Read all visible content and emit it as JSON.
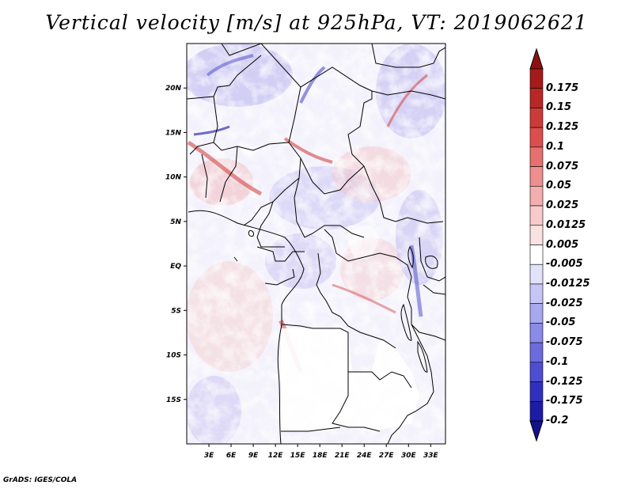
{
  "title": "Vertical velocity [m/s] at 925hPa, VT: 2019062621",
  "footer": "GrADS: IGES/COLA",
  "map": {
    "lon_range": [
      0,
      35
    ],
    "lat_range": [
      -20,
      25
    ],
    "lat_ticks": [
      {
        "value": 20,
        "label": "20N"
      },
      {
        "value": 15,
        "label": "15N"
      },
      {
        "value": 10,
        "label": "10N"
      },
      {
        "value": 5,
        "label": "5N"
      },
      {
        "value": 0,
        "label": "EQ"
      },
      {
        "value": -5,
        "label": "5S"
      },
      {
        "value": -10,
        "label": "10S"
      },
      {
        "value": -15,
        "label": "15S"
      }
    ],
    "lon_ticks": [
      {
        "value": 3,
        "label": "3E"
      },
      {
        "value": 6,
        "label": "6E"
      },
      {
        "value": 9,
        "label": "9E"
      },
      {
        "value": 12,
        "label": "12E"
      },
      {
        "value": 15,
        "label": "15E"
      },
      {
        "value": 18,
        "label": "18E"
      },
      {
        "value": 21,
        "label": "21E"
      },
      {
        "value": 24,
        "label": "24E"
      },
      {
        "value": 27,
        "label": "27E"
      },
      {
        "value": 30,
        "label": "30E"
      },
      {
        "value": 33,
        "label": "33E"
      }
    ]
  },
  "colorbar": {
    "levels": [
      {
        "label": "0.175",
        "color": "#a51a1a"
      },
      {
        "label": "0.15",
        "color": "#b92626"
      },
      {
        "label": "0.125",
        "color": "#cc3a3a"
      },
      {
        "label": "0.1",
        "color": "#dc4e4e"
      },
      {
        "label": "0.075",
        "color": "#e67070"
      },
      {
        "label": "0.05",
        "color": "#ee8e8e"
      },
      {
        "label": "0.025",
        "color": "#f4aeae"
      },
      {
        "label": "0.0125",
        "color": "#f8caca"
      },
      {
        "label": "0.005",
        "color": "#fbe2e2"
      },
      {
        "label": "-0.005",
        "color": "#ffffff"
      },
      {
        "label": "-0.0125",
        "color": "#e2e2fb"
      },
      {
        "label": "-0.025",
        "color": "#c6c6f6"
      },
      {
        "label": "-0.05",
        "color": "#a8a8f0"
      },
      {
        "label": "-0.075",
        "color": "#8a8ae8"
      },
      {
        "label": "-0.1",
        "color": "#6c6cde"
      },
      {
        "label": "-0.125",
        "color": "#4e4ed2"
      },
      {
        "label": "-0.175",
        "color": "#3030c0"
      },
      {
        "label": "-0.2",
        "color": "#1c1ca6"
      }
    ],
    "top_cap_color": "#8f1010",
    "bottom_cap_color": "#12128c"
  }
}
